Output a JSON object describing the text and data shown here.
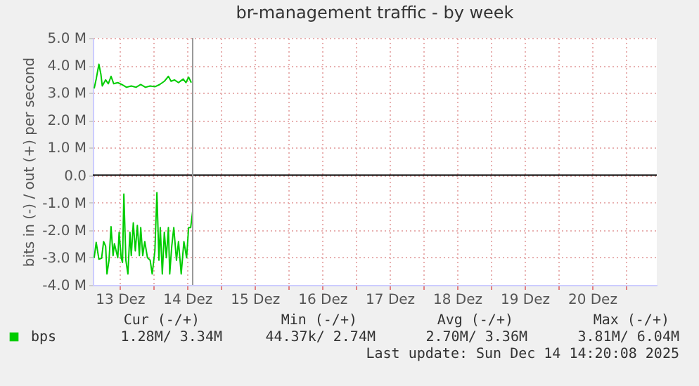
{
  "chart_data": {
    "type": "line",
    "title": "br-management traffic - by week",
    "ylabel": "bits in (-) / out (+) per second",
    "xlim": [
      13.1,
      21.46
    ],
    "xticks": [
      {
        "value": 13.5,
        "label": "13 Dez"
      },
      {
        "value": 14,
        "label": null
      },
      {
        "value": 14.5,
        "label": "14 Dez"
      },
      {
        "value": 15,
        "label": null
      },
      {
        "value": 15.5,
        "label": "15 Dez"
      },
      {
        "value": 16,
        "label": null
      },
      {
        "value": 16.5,
        "label": "16 Dez"
      },
      {
        "value": 17,
        "label": null
      },
      {
        "value": 17.5,
        "label": "17 Dez"
      },
      {
        "value": 18,
        "label": null
      },
      {
        "value": 18.5,
        "label": "18 Dez"
      },
      {
        "value": 19,
        "label": null
      },
      {
        "value": 19.5,
        "label": "19 Dez"
      },
      {
        "value": 20,
        "label": null
      },
      {
        "value": 20.5,
        "label": "20 Dez"
      },
      {
        "value": 21,
        "label": null
      }
    ],
    "ylim": [
      -4,
      5
    ],
    "yticks": [
      {
        "value": -4,
        "label": "-4.0 M"
      },
      {
        "value": -3,
        "label": "-3.0 M"
      },
      {
        "value": -2,
        "label": "-2.0 M"
      },
      {
        "value": -1,
        "label": "-1.0 M"
      },
      {
        "value": 0,
        "label": "0.0"
      },
      {
        "value": 1,
        "label": "1.0 M"
      },
      {
        "value": 2,
        "label": "2.0 M"
      },
      {
        "value": 3,
        "label": "3.0 M"
      },
      {
        "value": 4,
        "label": "4.0 M"
      },
      {
        "value": 5,
        "label": "5.0 M"
      }
    ],
    "grid": true,
    "legend": "bottom",
    "series": [
      {
        "name": "bps",
        "color": "#00cc00",
        "x": [
          13.12,
          13.15,
          13.19,
          13.22,
          13.24,
          13.29,
          13.33,
          13.37,
          13.41,
          13.47,
          13.53,
          13.6,
          13.67,
          13.74,
          13.81,
          13.88,
          13.95,
          14.02,
          14.09,
          14.16,
          14.22,
          14.26,
          14.31,
          14.37,
          14.44,
          14.48,
          14.52,
          14.56
        ],
        "values": [
          3.16,
          3.5,
          4.04,
          3.67,
          3.25,
          3.47,
          3.33,
          3.6,
          3.33,
          3.37,
          3.3,
          3.2,
          3.25,
          3.2,
          3.3,
          3.2,
          3.25,
          3.22,
          3.3,
          3.42,
          3.6,
          3.42,
          3.47,
          3.37,
          3.5,
          3.37,
          3.57,
          3.37
        ]
      },
      {
        "color": "#00cc00",
        "x": [
          13.12,
          13.15,
          13.19,
          13.23,
          13.26,
          13.29,
          13.31,
          13.34,
          13.37,
          13.4,
          13.42,
          13.47,
          13.49,
          13.52,
          13.54,
          13.56,
          13.59,
          13.62,
          13.65,
          13.67,
          13.7,
          13.73,
          13.76,
          13.79,
          13.81,
          13.84,
          13.87,
          13.91,
          13.95,
          13.98,
          14.02,
          14.05,
          14.08,
          14.1,
          14.13,
          14.16,
          14.19,
          14.22,
          14.24,
          14.27,
          14.3,
          14.34,
          14.37,
          14.41,
          14.45,
          14.49,
          14.52,
          14.55,
          14.58
        ],
        "values": [
          -3.01,
          -2.45,
          -3.06,
          -3.03,
          -2.42,
          -2.59,
          -3.6,
          -3.1,
          -1.88,
          -2.93,
          -2.5,
          -3.01,
          -2.08,
          -3.01,
          -3.18,
          -0.69,
          -3.1,
          -3.6,
          -2.08,
          -2.93,
          -1.74,
          -2.76,
          -1.83,
          -2.93,
          -1.91,
          -2.93,
          -2.42,
          -3.01,
          -3.1,
          -3.6,
          -2.76,
          -0.64,
          -3.1,
          -1.91,
          -3.6,
          -2.08,
          -3.01,
          -1.91,
          -3.6,
          -2.59,
          -1.91,
          -3.1,
          -2.42,
          -3.6,
          -2.42,
          -3.01,
          -1.91,
          -1.91,
          -1.32
        ]
      }
    ],
    "ref_lines": [
      {
        "axis": "y",
        "value": 0,
        "color": "#000000"
      },
      {
        "axis": "x",
        "value": 14.58,
        "color": "#999999"
      }
    ],
    "annotations": [
      "Cur (-/+)",
      "Min (-/+)",
      "Avg (-/+)",
      "Max (-/+)",
      "1.28M/   3.34M",
      "44.37k/   2.74M",
      "2.70M/   3.36M",
      "3.81M/   6.04M",
      "Last update: Sun Dec 14 14:20:08 2025"
    ]
  }
}
